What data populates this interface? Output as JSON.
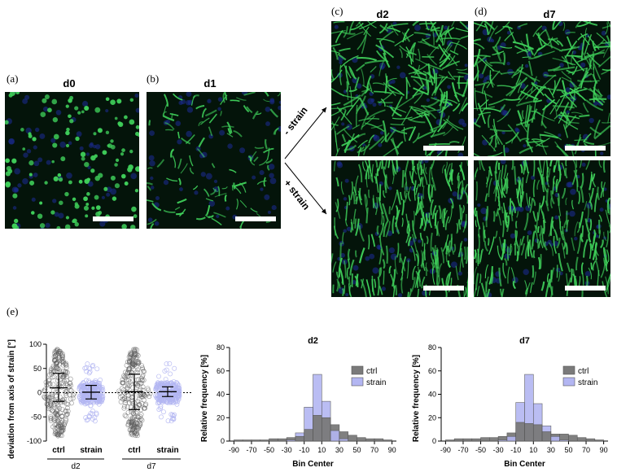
{
  "panel_labels": {
    "a": "(a)",
    "b": "(b)",
    "c": "(c)",
    "d": "(d)",
    "e": "(e)"
  },
  "day_labels": {
    "d0": "d0",
    "d1": "d1",
    "d2": "d2",
    "d7": "d7"
  },
  "arrow_labels": {
    "minus": "- strain",
    "plus": "+ strain"
  },
  "colors": {
    "nuclei": "#2a9a3a",
    "fibers": "#3fcf5a",
    "dapi": "#1a2a8a",
    "ctrl": "#7a7a7a",
    "strain": "#b3b6f2"
  },
  "chart_data": [
    {
      "type": "scatter",
      "ylabel": "deviation from axis of strain [°]",
      "ylim": [
        -100,
        100
      ],
      "yticks": [
        "100",
        "50",
        "0",
        "-50",
        "-100"
      ],
      "categories": [
        "ctrl",
        "strain",
        "ctrl",
        "strain"
      ],
      "groups": [
        "d2",
        "d7"
      ],
      "summary": [
        {
          "group": "d2",
          "cond": "ctrl",
          "mean": 10,
          "sd_low": -18,
          "sd_high": 40
        },
        {
          "group": "d2",
          "cond": "strain",
          "mean": 1,
          "sd_low": -13,
          "sd_high": 15
        },
        {
          "group": "d7",
          "cond": "ctrl",
          "mean": 2,
          "sd_low": -35,
          "sd_high": 38
        },
        {
          "group": "d7",
          "cond": "strain",
          "mean": 2,
          "sd_low": -8,
          "sd_high": 12
        }
      ]
    },
    {
      "type": "bar",
      "title": "d2",
      "xlabel": "Bin Center",
      "ylabel": "Relative frequency [%]",
      "ylim": [
        0,
        80
      ],
      "yticks": [
        "0",
        "20",
        "40",
        "60",
        "80"
      ],
      "xticks": [
        "-90",
        "-70",
        "-50",
        "-30",
        "-10",
        "10",
        "30",
        "50",
        "70",
        "90"
      ],
      "bin_centers": [
        -85,
        -75,
        -65,
        -55,
        -45,
        -35,
        -25,
        -15,
        -5,
        5,
        15,
        25,
        35,
        45,
        55,
        65,
        75,
        85
      ],
      "series": [
        {
          "name": "ctrl",
          "values": [
            1,
            1,
            1,
            1,
            2,
            2,
            3,
            4,
            10,
            22,
            20,
            14,
            8,
            5,
            3,
            2,
            2,
            1
          ]
        },
        {
          "name": "strain",
          "values": [
            0,
            0,
            0,
            0,
            0,
            0,
            1,
            7,
            29,
            57,
            34,
            9,
            2,
            0,
            0,
            0,
            0,
            0
          ]
        }
      ],
      "legend": "right"
    },
    {
      "type": "bar",
      "title": "d7",
      "xlabel": "Bin Center",
      "ylabel": "Relative frequency [%]",
      "ylim": [
        0,
        80
      ],
      "yticks": [
        "0",
        "20",
        "40",
        "60",
        "80"
      ],
      "xticks": [
        "-90",
        "-70",
        "-50",
        "-30",
        "-10",
        "10",
        "30",
        "50",
        "70",
        "90"
      ],
      "bin_centers": [
        -85,
        -75,
        -65,
        -55,
        -45,
        -35,
        -25,
        -15,
        -5,
        5,
        15,
        25,
        35,
        45,
        55,
        65,
        75,
        85
      ],
      "series": [
        {
          "name": "ctrl",
          "values": [
            1,
            2,
            2,
            2,
            3,
            3,
            4,
            7,
            16,
            15,
            14,
            8,
            6,
            6,
            5,
            3,
            2,
            1
          ]
        },
        {
          "name": "strain",
          "values": [
            0,
            0,
            0,
            0,
            0,
            0,
            1,
            4,
            33,
            57,
            32,
            13,
            4,
            1,
            0,
            0,
            0,
            0
          ]
        }
      ],
      "legend": "right"
    }
  ]
}
